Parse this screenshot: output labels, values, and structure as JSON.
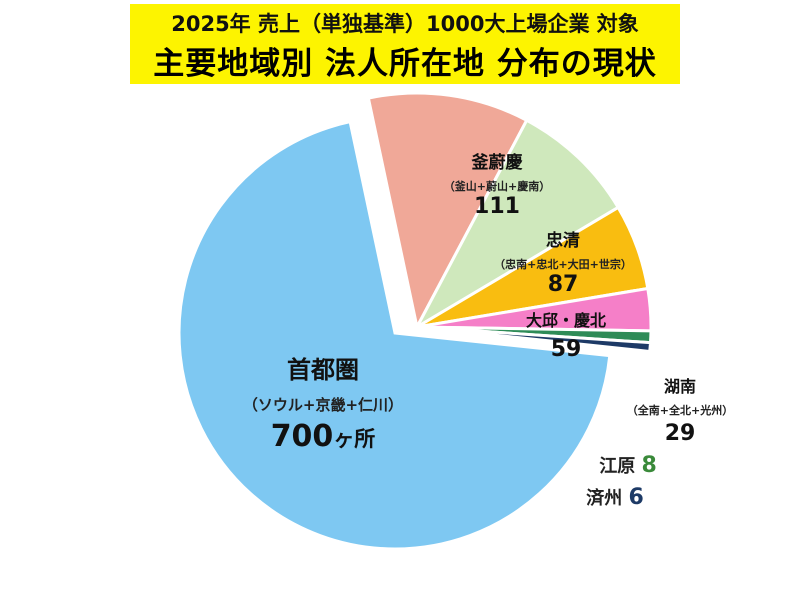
{
  "header": {
    "line1": "2025年 売上（単独基準）1000大上場企業 対象",
    "line2": "主要地域別 法人所在地 分布の現状"
  },
  "chart_data": {
    "type": "pie",
    "title": "主要地域別 法人所在地 分布の現状",
    "subtitle": "2025年 売上（単独基準）1000大上場企業 対象",
    "unit": "ヶ所",
    "slices": [
      {
        "name": "首都圏",
        "detail": "（ソウル+京畿+仁川）",
        "value": 700,
        "value_label": "700",
        "suffix": "ヶ所",
        "color": "#7ec8f2"
      },
      {
        "name": "釜蔚慶",
        "detail": "（釜山+蔚山+慶南）",
        "value": 111,
        "value_label": "111",
        "color": "#f0a898"
      },
      {
        "name": "忠清",
        "detail": "（忠南+忠北+大田+世宗）",
        "value": 87,
        "value_label": "87",
        "color": "#cfe8bc"
      },
      {
        "name": "大邱・慶北",
        "detail": "",
        "value": 59,
        "value_label": "59",
        "color": "#f9bd10"
      },
      {
        "name": "湖南",
        "detail": "（全南+全北+光州）",
        "value": 29,
        "value_label": "29",
        "color": "#f57fc8"
      },
      {
        "name": "江原",
        "detail": "",
        "value": 8,
        "value_label": "8",
        "color": "#2e8b57",
        "value_color": "#3a8a3a"
      },
      {
        "name": "済州",
        "detail": "",
        "value": 6,
        "value_label": "6",
        "color": "#1d3a66",
        "value_color": "#1d3a66"
      }
    ],
    "legend": "none"
  }
}
